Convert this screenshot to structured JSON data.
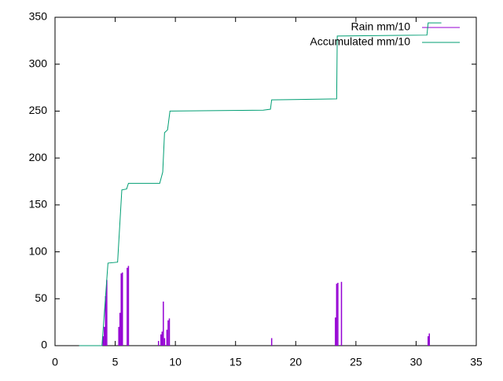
{
  "chart_data": {
    "type": "line",
    "xlim": [
      0,
      35
    ],
    "xticks": [
      0,
      5,
      10,
      15,
      20,
      25,
      30,
      35
    ],
    "ylim": [
      0,
      350
    ],
    "yticks": [
      0,
      50,
      100,
      150,
      200,
      250,
      300,
      350
    ],
    "grid": false,
    "legend": "top-right",
    "series": [
      {
        "name": "Rain mm/10",
        "color": "#9400d3",
        "style": "impulses",
        "x": [
          4.0,
          4.1,
          4.2,
          4.3,
          5.3,
          5.4,
          5.5,
          5.6,
          6.0,
          6.1,
          8.6,
          8.8,
          8.9,
          9.0,
          9.1,
          9.3,
          9.4,
          9.5,
          18.0,
          23.3,
          23.4,
          23.5,
          23.8,
          31.0,
          31.1
        ],
        "values": [
          10,
          20,
          53,
          70,
          20,
          35,
          77,
          78,
          83,
          85,
          5,
          12,
          15,
          47,
          8,
          17,
          27,
          29,
          8,
          30,
          66,
          67,
          68,
          10,
          13
        ]
      },
      {
        "name": "Accumulated mm/10",
        "color": "#009e73",
        "style": "lines",
        "x": [
          2.0,
          3.9,
          4.4,
          5.2,
          5.55,
          5.95,
          6.1,
          8.7,
          8.95,
          9.1,
          9.35,
          9.55,
          17.3,
          17.9,
          18.0,
          23.4,
          23.45,
          30.9,
          31.0,
          32.1
        ],
        "values": [
          0,
          0,
          88,
          89,
          166,
          167,
          173,
          173,
          185,
          227,
          230,
          250,
          251,
          252,
          262,
          263,
          330,
          331,
          344,
          344
        ]
      }
    ]
  }
}
